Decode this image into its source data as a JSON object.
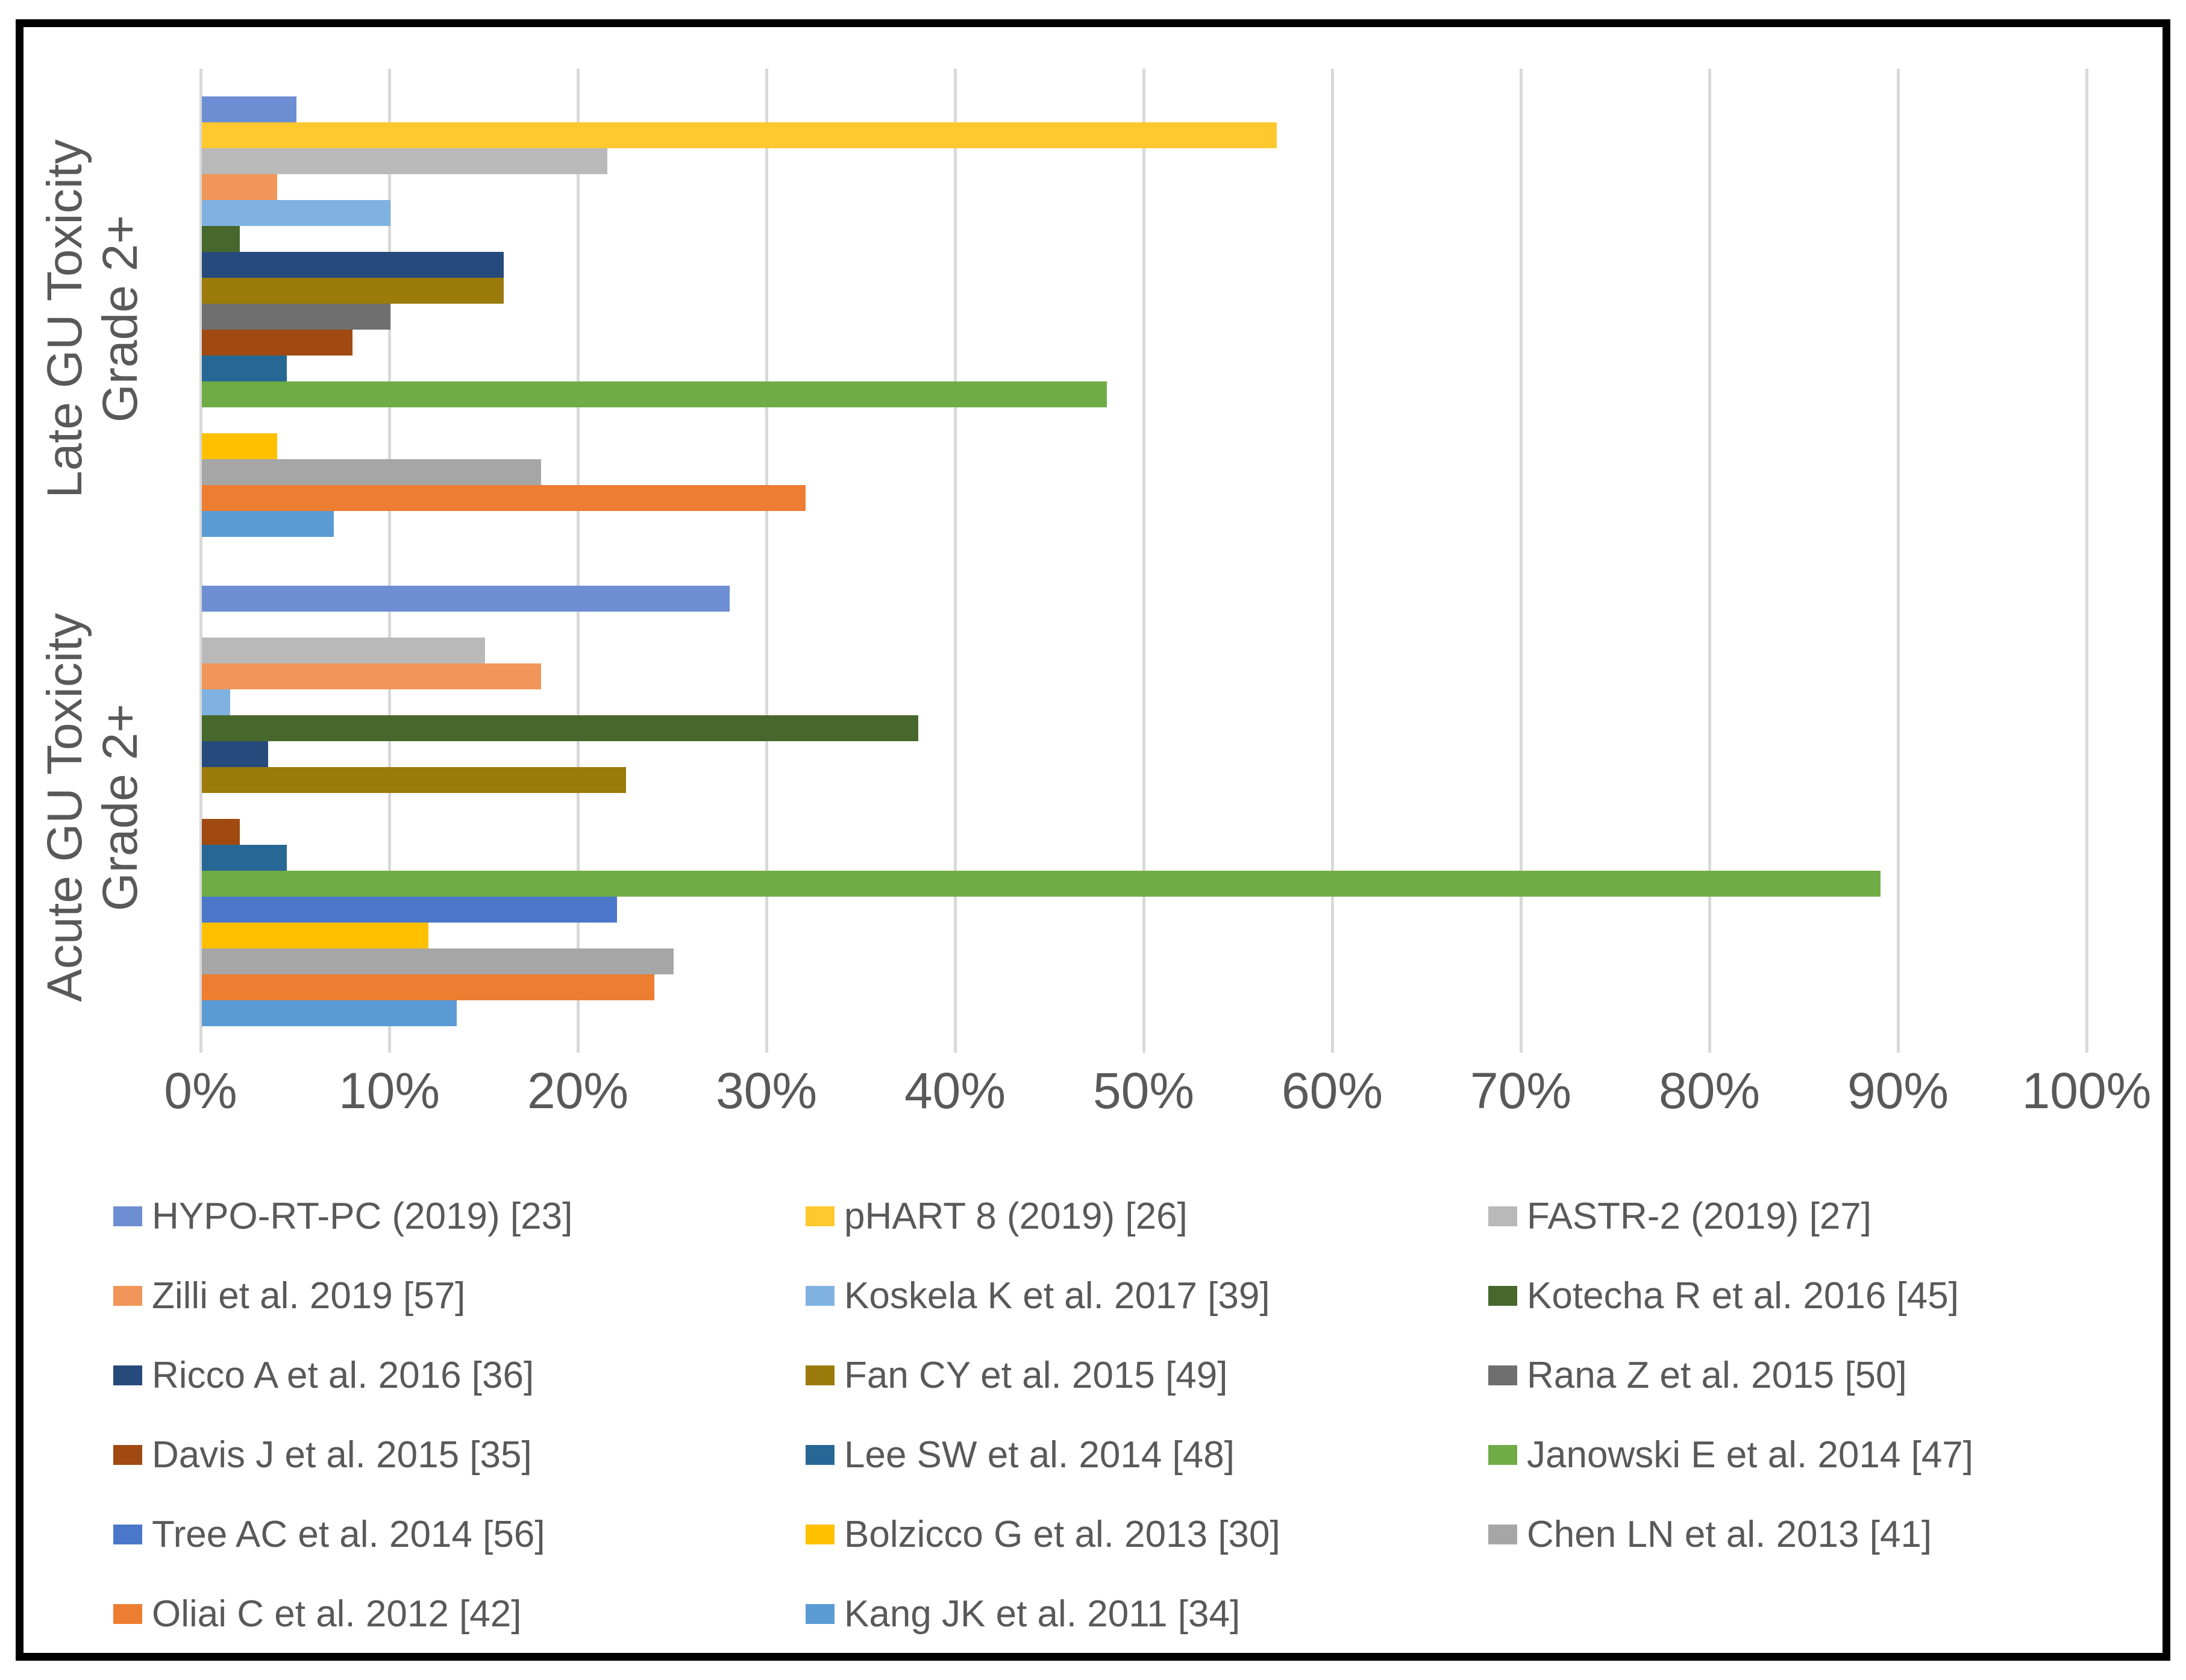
{
  "styles": {
    "background": "#FFFFFF",
    "frame_color": "#000000",
    "grid_color": "#D9D9D9",
    "text_color": "#595959"
  },
  "chart_data": {
    "type": "bar",
    "orientation": "horizontal",
    "title": "",
    "xlabel": "",
    "ylabel": "",
    "xlim": [
      0,
      100
    ],
    "grid": true,
    "legend_position": "bottom",
    "value_unit": "%",
    "x_ticks": [
      "0%",
      "10%",
      "20%",
      "30%",
      "40%",
      "50%",
      "60%",
      "70%",
      "80%",
      "90%",
      "100%"
    ],
    "categories": [
      {
        "id": "late",
        "label_lines": [
          "Late GU Toxicity",
          "Grade 2+"
        ]
      },
      {
        "id": "acute",
        "label_lines": [
          "Acute GU Toxicity",
          "Grade 2+"
        ]
      }
    ],
    "series": [
      {
        "name": "HYPO-RT-PC (2019) [23]",
        "color": "#6D8ED2",
        "values": [
          5,
          28
        ]
      },
      {
        "name": "pHART 8 (2019) [26]",
        "color": "#FFC82E",
        "values": [
          57,
          null
        ]
      },
      {
        "name": "FASTR-2 (2019) [27]",
        "color": "#B9B9B9",
        "values": [
          21.5,
          15
        ]
      },
      {
        "name": "Zilli et al. 2019 [57]",
        "color": "#F0965A",
        "values": [
          4,
          18
        ]
      },
      {
        "name": "Koskela K et al. 2017 [39]",
        "color": "#7FB2E1",
        "values": [
          10,
          1.5
        ]
      },
      {
        "name": "Kotecha R et al. 2016 [45]",
        "color": "#47682C",
        "values": [
          2,
          38
        ]
      },
      {
        "name": "Ricco A et al. 2016 [36]",
        "color": "#274A7C",
        "values": [
          16,
          3.5
        ]
      },
      {
        "name": "Fan CY et al. 2015 [49]",
        "color": "#9A7B0B",
        "values": [
          16,
          22.5
        ]
      },
      {
        "name": "Rana Z et al. 2015 [50]",
        "color": "#6F6F6F",
        "values": [
          10,
          null
        ]
      },
      {
        "name": "Davis J et al. 2015 [35]",
        "color": "#A04A11",
        "values": [
          8,
          2
        ]
      },
      {
        "name": "Lee SW et al. 2014 [48]",
        "color": "#276795",
        "values": [
          4.5,
          4.5
        ]
      },
      {
        "name": "Janowski E et al. 2014 [47]",
        "color": "#6FAC46",
        "values": [
          48,
          89
        ]
      },
      {
        "name": "Tree AC et al. 2014 [56]",
        "color": "#4A77C9",
        "values": [
          null,
          22
        ]
      },
      {
        "name": "Bolzicco G et al. 2013 [30]",
        "color": "#FFC000",
        "values": [
          4,
          12
        ]
      },
      {
        "name": "Chen LN et al. 2013 [41]",
        "color": "#A6A6A6",
        "values": [
          18,
          25
        ]
      },
      {
        "name": "Oliai C et al. 2012 [42]",
        "color": "#EC7D31",
        "values": [
          32,
          24
        ]
      },
      {
        "name": "Kang JK et al. 2011 [34]",
        "color": "#5B9BD5",
        "values": [
          7,
          13.5
        ]
      }
    ]
  }
}
